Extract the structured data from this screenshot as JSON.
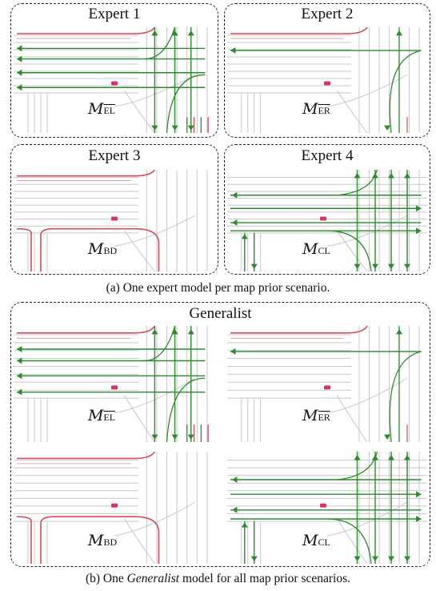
{
  "experts": {
    "e1": {
      "title": "Expert 1",
      "label_sub": "EL",
      "overline": true
    },
    "e2": {
      "title": "Expert 2",
      "label_sub": "ER",
      "overline": true
    },
    "e3": {
      "title": "Expert 3",
      "label_sub": "BD",
      "overline": false
    },
    "e4": {
      "title": "Expert 4",
      "label_sub": "CL",
      "overline": false
    }
  },
  "caption_a": "(a) One expert model per map prior scenario.",
  "generalist": {
    "title": "Generalist",
    "labels": [
      "EL",
      "ER",
      "BD",
      "CL"
    ]
  },
  "caption_b": {
    "pre": "(b) One ",
    "em": "Generalist",
    "post": " model for all map prior scenarios."
  },
  "model_symbol": "M",
  "colors": {
    "route": "#2a8c2a",
    "boundary": "#d94a5a",
    "lane": "#c8c8c8",
    "ego": "#e0306a"
  }
}
